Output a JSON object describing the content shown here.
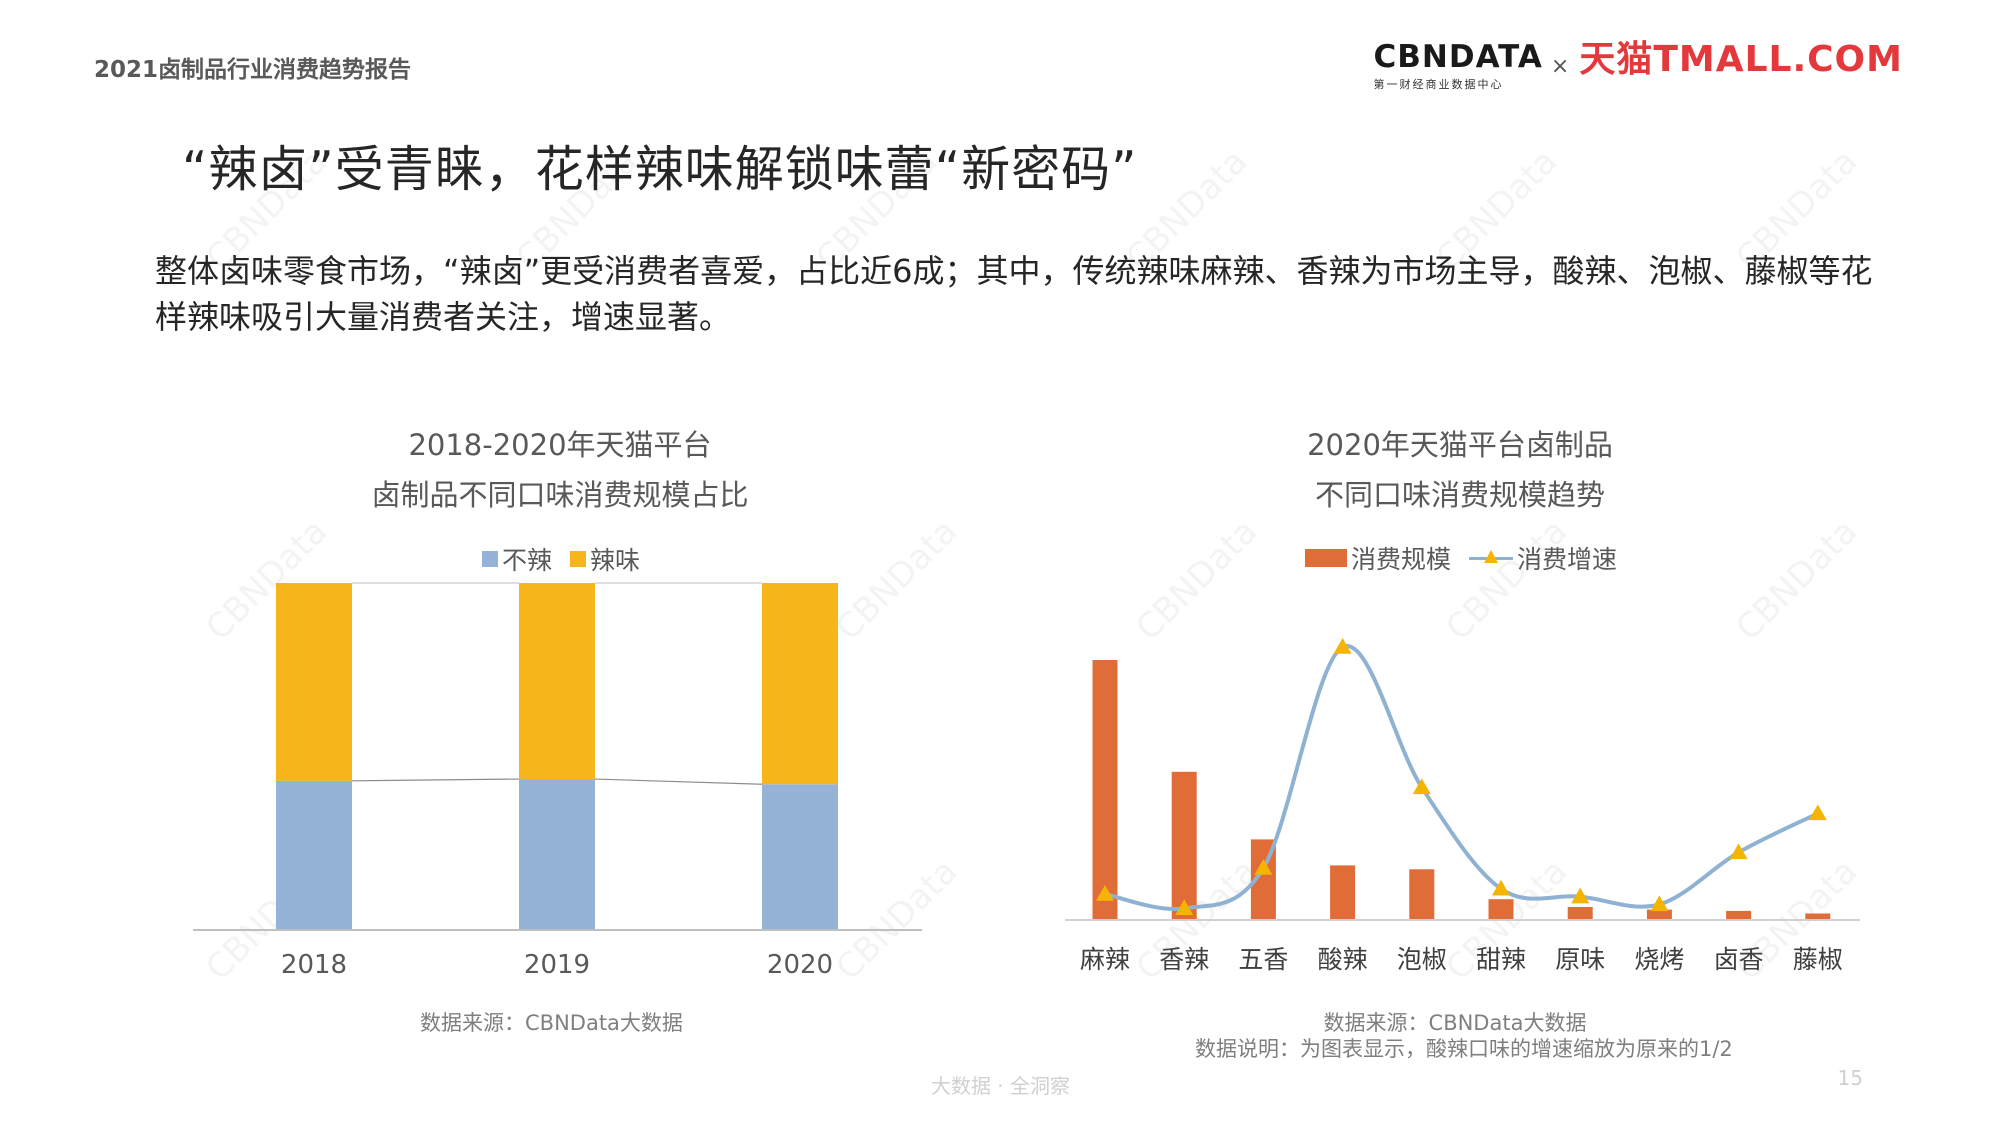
{
  "header": {
    "report_title": "2021卤制品行业消费趋势报告",
    "cbn_logo": "CBNDATA",
    "cbn_sub": "第一财经商业数据中心",
    "logo_separator": "×",
    "tmall_logo": "天猫TMALL.COM"
  },
  "headline": "“辣卤”受青睐，花样辣味解锁味蕾“新密码”",
  "summary": "整体卤味零食市场，“辣卤”更受消费者喜爱，占比近6成；其中，传统辣味麻辣、香辣为市场主导，酸辣、泡椒、藤椒等花样辣味吸引大量消费者关注，增速显著。",
  "watermark_text": "CBNData",
  "colors": {
    "not_spicy": "#95b3d7",
    "spicy": "#f5b51b",
    "bar_orange": "#e06c37",
    "line_blue": "#8fb2d2",
    "marker_yellow": "#f5b400"
  },
  "chart_data": [
    {
      "type": "bar",
      "stacked": true,
      "normalized": true,
      "title_lines": [
        "2018-2020年天猫平台",
        "卤制品不同口味消费规模占比"
      ],
      "categories": [
        "2018",
        "2019",
        "2020"
      ],
      "series": [
        {
          "name": "不辣",
          "values": [
            43,
            43.5,
            42
          ]
        },
        {
          "name": "辣味",
          "values": [
            57,
            56.5,
            58
          ]
        }
      ],
      "ylim": [
        0,
        100
      ],
      "legend": "top-center",
      "grid": false,
      "source": "数据来源：CBNData大数据"
    },
    {
      "type": "bar",
      "combo_with_line": true,
      "title_lines": [
        "2020年天猫平台卤制品",
        "不同口味消费规模趋势"
      ],
      "categories": [
        "麻辣",
        "香辣",
        "五香",
        "酸辣",
        "泡椒",
        "甜辣",
        "原味",
        "烧烤",
        "卤香",
        "藤椒"
      ],
      "series": [
        {
          "name": "消费规模",
          "type": "bar",
          "values": [
            100,
            57,
            31,
            21,
            19.5,
            8,
            5,
            4,
            3.5,
            2.5
          ]
        },
        {
          "name": "消费增速",
          "type": "line",
          "values": [
            10,
            4.5,
            20,
            105,
            51,
            12,
            9,
            6,
            26,
            41
          ]
        }
      ],
      "ylim": [
        0,
        110
      ],
      "legend": "top-center",
      "grid": false,
      "source": "数据来源：CBNData大数据",
      "note": "数据说明：为图表显示，酸辣口味的增速缩放为原来的1/2"
    }
  ],
  "footer": {
    "tagline": "大数据 · 全洞察",
    "page_number": "15"
  }
}
